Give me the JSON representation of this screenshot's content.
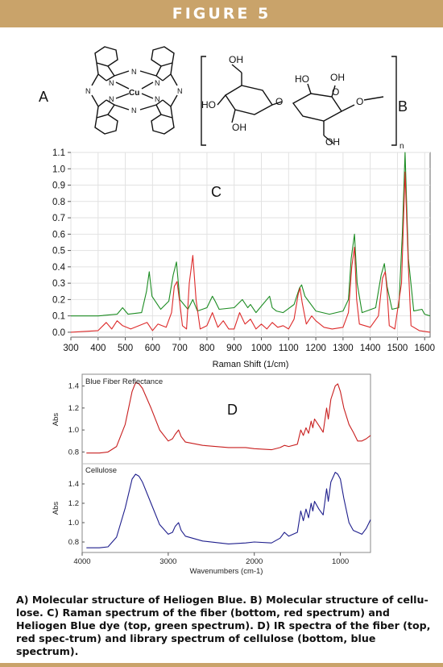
{
  "figure": {
    "title": "FIGURE 5",
    "caption": "A) Molecular structure of Heliogen Blue. B) Molecular structure of cellu-lose. C) Raman spectrum of the fiber (bottom, red spectrum) and Heliogen Blue dye (top, green spectrum). D) IR spectra of the fiber (top, red spec-trum) and library spectrum of cellulose (bottom, blue spectrum).",
    "panel_labels": {
      "a": "A",
      "b": "B",
      "c": "C",
      "d": "D"
    }
  },
  "structure_a": {
    "metal": "Cu",
    "n_label": "N"
  },
  "structure_b": {
    "oh": "OH",
    "ho": "HO",
    "o": "O",
    "n": "n"
  },
  "colors": {
    "banner": "#c9a36a",
    "raman_fiber": "#dd2a2a",
    "raman_dye": "#1c8c22",
    "ir_fiber": "#c81e1e",
    "ir_cellulose": "#1e1e8c"
  },
  "chart_data": [
    {
      "type": "line",
      "panel": "C",
      "xlabel": "Raman Shift (1/cm)",
      "ylabel": "",
      "xlim": [
        300,
        1620
      ],
      "ylim": [
        -0.03,
        1.1
      ],
      "xticks": [
        300,
        400,
        500,
        600,
        700,
        800,
        900,
        1000,
        1100,
        1200,
        1300,
        1400,
        1500,
        1600
      ],
      "yticks": [
        0.0,
        0.1,
        0.2,
        0.3,
        0.4,
        0.5,
        0.6,
        0.7,
        0.8,
        0.9,
        1.0,
        1.1
      ],
      "grid": true,
      "series": [
        {
          "color": "#1c8c22",
          "x": [
            300,
            400,
            470,
            490,
            510,
            560,
            578,
            588,
            598,
            630,
            660,
            676,
            688,
            700,
            730,
            748,
            765,
            800,
            820,
            830,
            845,
            900,
            930,
            950,
            960,
            980,
            1000,
            1030,
            1040,
            1055,
            1080,
            1120,
            1140,
            1148,
            1160,
            1200,
            1250,
            1300,
            1320,
            1330,
            1342,
            1352,
            1370,
            1420,
            1440,
            1452,
            1462,
            1480,
            1505,
            1518,
            1528,
            1540,
            1560,
            1590,
            1600,
            1620
          ],
          "y": [
            0.1,
            0.1,
            0.11,
            0.15,
            0.11,
            0.12,
            0.25,
            0.37,
            0.22,
            0.14,
            0.19,
            0.35,
            0.43,
            0.2,
            0.14,
            0.2,
            0.13,
            0.15,
            0.22,
            0.19,
            0.14,
            0.15,
            0.2,
            0.15,
            0.17,
            0.12,
            0.16,
            0.22,
            0.15,
            0.13,
            0.12,
            0.17,
            0.27,
            0.29,
            0.22,
            0.13,
            0.11,
            0.13,
            0.2,
            0.45,
            0.6,
            0.3,
            0.12,
            0.15,
            0.35,
            0.42,
            0.28,
            0.14,
            0.15,
            0.6,
            1.1,
            0.45,
            0.13,
            0.14,
            0.11,
            0.1
          ]
        },
        {
          "color": "#dd2a2a",
          "x": [
            300,
            400,
            430,
            450,
            470,
            490,
            520,
            580,
            600,
            620,
            650,
            670,
            680,
            690,
            700,
            710,
            725,
            735,
            748,
            760,
            775,
            800,
            820,
            840,
            860,
            880,
            900,
            920,
            940,
            960,
            980,
            1000,
            1020,
            1040,
            1060,
            1080,
            1100,
            1120,
            1135,
            1142,
            1150,
            1165,
            1185,
            1200,
            1230,
            1260,
            1300,
            1320,
            1332,
            1342,
            1350,
            1360,
            1400,
            1430,
            1445,
            1455,
            1462,
            1470,
            1490,
            1515,
            1528,
            1540,
            1550,
            1580,
            1620
          ],
          "y": [
            0.0,
            0.01,
            0.06,
            0.02,
            0.07,
            0.04,
            0.02,
            0.06,
            0.01,
            0.05,
            0.03,
            0.12,
            0.28,
            0.31,
            0.18,
            0.04,
            0.02,
            0.3,
            0.47,
            0.2,
            0.02,
            0.04,
            0.12,
            0.03,
            0.07,
            0.02,
            0.02,
            0.12,
            0.05,
            0.08,
            0.02,
            0.05,
            0.02,
            0.06,
            0.03,
            0.04,
            0.02,
            0.08,
            0.23,
            0.27,
            0.18,
            0.05,
            0.1,
            0.07,
            0.03,
            0.02,
            0.03,
            0.12,
            0.4,
            0.52,
            0.2,
            0.05,
            0.03,
            0.1,
            0.33,
            0.37,
            0.25,
            0.04,
            0.02,
            0.3,
            0.98,
            0.4,
            0.04,
            0.01,
            0.0
          ]
        }
      ]
    },
    {
      "type": "line",
      "panel": "D",
      "xlabel": "Wavenumbers (cm-1)",
      "ylabel": "Abs",
      "xlim": [
        4000,
        650
      ],
      "xticks": [
        4000,
        3000,
        2000,
        1000
      ],
      "subplots": [
        {
          "title": "Blue Fiber Reflectance",
          "ylim": [
            0.7,
            1.5
          ],
          "yticks": [
            0.8,
            1.0,
            1.2,
            1.4
          ],
          "series": [
            {
              "color": "#c81e1e",
              "x": [
                3950,
                3800,
                3700,
                3600,
                3500,
                3420,
                3380,
                3340,
                3300,
                3200,
                3100,
                3000,
                2950,
                2920,
                2880,
                2850,
                2800,
                2600,
                2300,
                2100,
                2000,
                1800,
                1700,
                1650,
                1600,
                1500,
                1460,
                1430,
                1400,
                1370,
                1340,
                1320,
                1300,
                1250,
                1200,
                1160,
                1140,
                1110,
                1060,
                1030,
                1000,
                960,
                900,
                850,
                800,
                750,
                700,
                650
              ],
              "y": [
                0.79,
                0.79,
                0.8,
                0.85,
                1.05,
                1.35,
                1.43,
                1.42,
                1.38,
                1.2,
                1.0,
                0.9,
                0.92,
                0.96,
                1.0,
                0.94,
                0.89,
                0.86,
                0.84,
                0.84,
                0.83,
                0.82,
                0.84,
                0.86,
                0.85,
                0.87,
                1.0,
                0.95,
                1.02,
                0.97,
                1.08,
                1.02,
                1.1,
                1.04,
                0.98,
                1.2,
                1.1,
                1.28,
                1.4,
                1.42,
                1.35,
                1.2,
                1.05,
                0.98,
                0.9,
                0.9,
                0.92,
                0.95
              ]
            }
          ]
        },
        {
          "title": "Cellulose",
          "ylim": [
            0.7,
            1.6
          ],
          "yticks": [
            0.8,
            1.0,
            1.2,
            1.4
          ],
          "series": [
            {
              "color": "#1e1e8c",
              "x": [
                3950,
                3800,
                3700,
                3600,
                3500,
                3420,
                3380,
                3340,
                3300,
                3200,
                3100,
                3000,
                2950,
                2920,
                2880,
                2850,
                2800,
                2600,
                2300,
                2100,
                2000,
                1800,
                1700,
                1650,
                1600,
                1500,
                1460,
                1430,
                1400,
                1370,
                1340,
                1320,
                1300,
                1250,
                1200,
                1160,
                1140,
                1110,
                1060,
                1030,
                1000,
                960,
                900,
                850,
                800,
                750,
                700,
                650
              ],
              "y": [
                0.74,
                0.74,
                0.75,
                0.85,
                1.15,
                1.45,
                1.5,
                1.48,
                1.42,
                1.2,
                0.98,
                0.88,
                0.9,
                0.96,
                1.0,
                0.92,
                0.86,
                0.81,
                0.78,
                0.79,
                0.8,
                0.79,
                0.84,
                0.9,
                0.86,
                0.9,
                1.12,
                1.02,
                1.14,
                1.05,
                1.2,
                1.12,
                1.22,
                1.14,
                1.08,
                1.35,
                1.22,
                1.42,
                1.52,
                1.5,
                1.45,
                1.25,
                1.0,
                0.92,
                0.9,
                0.88,
                0.94,
                1.03
              ]
            }
          ]
        }
      ]
    }
  ]
}
